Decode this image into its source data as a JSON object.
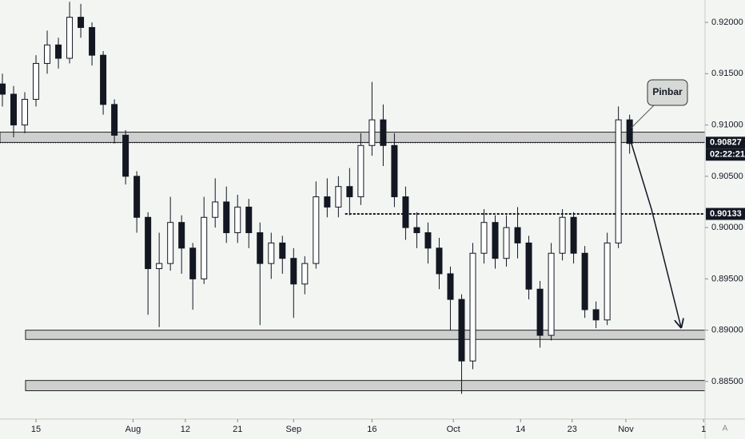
{
  "chart_data": {
    "type": "candlestick",
    "x": [
      -4.5,
      -3,
      -1.5,
      0,
      1.5,
      3,
      4.5,
      6,
      7.5,
      9,
      10.5,
      12,
      13.5,
      15,
      16.5,
      18,
      19.5,
      21,
      22.5,
      24,
      25.5,
      27,
      28.5,
      30,
      31.5,
      33,
      34.5,
      36,
      37.5,
      39,
      40.5,
      42,
      43.5,
      45,
      46.5,
      48,
      49.5,
      51,
      52.5,
      54,
      55.5,
      57,
      58.5,
      60,
      61.5,
      63,
      64.5,
      66,
      67.5,
      69,
      70.5,
      72,
      73.5,
      75,
      76.5,
      78,
      79.5
    ],
    "open": [
      0.914,
      0.913,
      0.91,
      0.9125,
      0.916,
      0.9178,
      0.9165,
      0.9205,
      0.9195,
      0.9168,
      0.912,
      0.909,
      0.905,
      0.901,
      0.896,
      0.8965,
      0.9005,
      0.898,
      0.895,
      0.901,
      0.9025,
      0.8995,
      0.902,
      0.8995,
      0.8965,
      0.8985,
      0.897,
      0.8945,
      0.8965,
      0.903,
      0.902,
      0.904,
      0.903,
      0.908,
      0.9105,
      0.908,
      0.903,
      0.9,
      0.8995,
      0.898,
      0.8955,
      0.893,
      0.887,
      0.8975,
      0.9005,
      0.897,
      0.9,
      0.8985,
      0.894,
      0.8895,
      0.8975,
      0.901,
      0.8975,
      0.892,
      0.891,
      0.8985,
      0.9105
    ],
    "high": [
      0.915,
      0.9138,
      0.9132,
      0.9168,
      0.9192,
      0.9185,
      0.922,
      0.9218,
      0.92,
      0.9172,
      0.9125,
      0.9095,
      0.9055,
      0.9015,
      0.8995,
      0.903,
      0.9012,
      0.8985,
      0.903,
      0.9048,
      0.904,
      0.9032,
      0.9028,
      0.9005,
      0.8995,
      0.8992,
      0.898,
      0.8972,
      0.9045,
      0.9048,
      0.905,
      0.9058,
      0.9092,
      0.9142,
      0.912,
      0.9092,
      0.904,
      0.9015,
      0.9005,
      0.899,
      0.8962,
      0.8935,
      0.8985,
      0.9018,
      0.9012,
      0.9012,
      0.902,
      0.8992,
      0.8948,
      0.8985,
      0.9018,
      0.9015,
      0.8982,
      0.8928,
      0.8995,
      0.9118,
      0.911
    ],
    "low": [
      0.9118,
      0.9088,
      0.9092,
      0.9118,
      0.915,
      0.9155,
      0.916,
      0.9185,
      0.9158,
      0.911,
      0.9082,
      0.9042,
      0.8995,
      0.8915,
      0.8903,
      0.8958,
      0.8955,
      0.892,
      0.8945,
      0.9,
      0.8985,
      0.8985,
      0.898,
      0.8905,
      0.895,
      0.8955,
      0.8912,
      0.8935,
      0.896,
      0.901,
      0.901,
      0.9012,
      0.9022,
      0.907,
      0.906,
      0.902,
      0.8988,
      0.898,
      0.8965,
      0.894,
      0.89,
      0.8838,
      0.8862,
      0.8965,
      0.896,
      0.8962,
      0.897,
      0.893,
      0.8883,
      0.889,
      0.8968,
      0.8965,
      0.8912,
      0.8902,
      0.8905,
      0.898,
      0.9072
    ],
    "close": [
      0.913,
      0.91,
      0.9125,
      0.916,
      0.9178,
      0.9165,
      0.9205,
      0.9195,
      0.9168,
      0.912,
      0.909,
      0.905,
      0.901,
      0.896,
      0.8965,
      0.9005,
      0.898,
      0.895,
      0.901,
      0.9025,
      0.8995,
      0.902,
      0.8995,
      0.8965,
      0.8985,
      0.897,
      0.8945,
      0.8965,
      0.903,
      0.902,
      0.904,
      0.903,
      0.908,
      0.9105,
      0.908,
      0.903,
      0.9,
      0.8995,
      0.898,
      0.8955,
      0.893,
      0.887,
      0.8975,
      0.9005,
      0.897,
      0.9,
      0.8985,
      0.894,
      0.8895,
      0.8975,
      0.901,
      0.8975,
      0.892,
      0.891,
      0.8985,
      0.9105,
      0.9082
    ],
    "up_color": "#ffffff",
    "down_color": "#131722",
    "xlim": [
      -4.82,
      89.6
    ],
    "ylim": [
      0.88134,
      0.92218
    ],
    "xticks": [
      {
        "value": 0,
        "label": "15"
      },
      {
        "value": 13,
        "label": "Aug"
      },
      {
        "value": 20,
        "label": "12"
      },
      {
        "value": 27,
        "label": "21"
      },
      {
        "value": 34.5,
        "label": "Sep"
      },
      {
        "value": 45,
        "label": "16"
      },
      {
        "value": 55.9,
        "label": "Oct"
      },
      {
        "value": 64.9,
        "label": "14"
      },
      {
        "value": 71.8,
        "label": "23"
      },
      {
        "value": 79,
        "label": "Nov"
      },
      {
        "value": 89.4,
        "label": "1"
      }
    ],
    "yticks": [
      {
        "value": 0.92,
        "label": "0.92000"
      },
      {
        "value": 0.915,
        "label": "0.91500"
      },
      {
        "value": 0.91,
        "label": "0.91000"
      },
      {
        "value": 0.905,
        "label": "0.90500"
      },
      {
        "value": 0.9,
        "label": "0.90000"
      },
      {
        "value": 0.895,
        "label": "0.89500"
      },
      {
        "value": 0.89,
        "label": "0.89000"
      },
      {
        "value": 0.885,
        "label": "0.88500"
      }
    ],
    "zones": [
      {
        "from": -4.82,
        "top": 0.9093,
        "bottom": 0.9083
      },
      {
        "from": -1.4,
        "top": 0.89,
        "bottom": 0.8891
      },
      {
        "from": -1.4,
        "top": 0.8851,
        "bottom": 0.8841
      }
    ],
    "current_price": 0.90827,
    "countdown": "02:22:21",
    "level": {
      "from": 41.4,
      "value": 0.90133
    },
    "annotation": "Pinbar",
    "corner_label": "A"
  }
}
